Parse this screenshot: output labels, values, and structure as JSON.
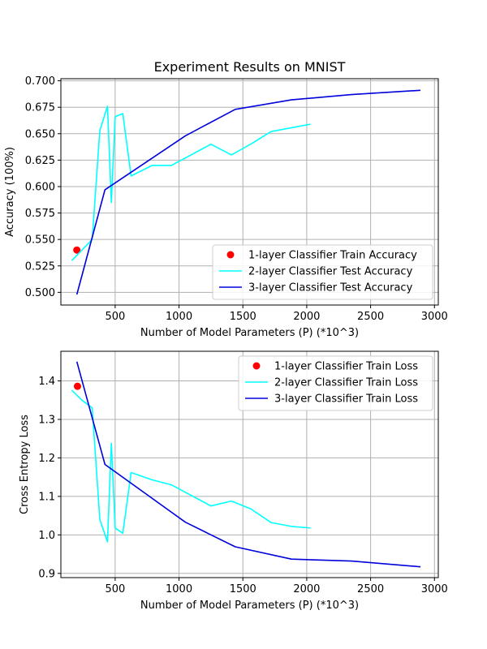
{
  "chart_data": [
    {
      "type": "line",
      "title": "Experiment Results on MNIST",
      "xlabel": "Number of Model Parameters (P) (*10^3)",
      "ylabel": "Accuracy (100%)",
      "xlim": [
        75,
        3030
      ],
      "ylim": [
        0.488,
        0.702
      ],
      "xticks": [
        500,
        1000,
        1500,
        2000,
        2500,
        3000
      ],
      "yticks": [
        0.5,
        0.525,
        0.55,
        0.575,
        0.6,
        0.625,
        0.65,
        0.675,
        0.7
      ],
      "yticklabels": [
        "0.500",
        "0.525",
        "0.550",
        "0.575",
        "0.600",
        "0.625",
        "0.650",
        "0.675",
        "0.700"
      ],
      "grid": true,
      "legend_position": "lower-right",
      "series": [
        {
          "name": "1-layer Classifier Train Accuracy",
          "style": "scatter",
          "color": "#ff0000",
          "points": [
            [
              200,
              0.54
            ]
          ]
        },
        {
          "name": "2-layer Classifier Test Accuracy",
          "style": "line",
          "color": "#00ffff",
          "points": [
            [
              160,
              0.53
            ],
            [
              240,
              0.54
            ],
            [
              320,
              0.55
            ],
            [
              380,
              0.653
            ],
            [
              440,
              0.676
            ],
            [
              470,
              0.585
            ],
            [
              500,
              0.666
            ],
            [
              560,
              0.669
            ],
            [
              625,
              0.61
            ],
            [
              790,
              0.62
            ],
            [
              940,
              0.62
            ],
            [
              1250,
              0.64
            ],
            [
              1410,
              0.63
            ],
            [
              1560,
              0.64
            ],
            [
              1720,
              0.652
            ],
            [
              2030,
              0.659
            ]
          ]
        },
        {
          "name": "3-layer Classifier Test Accuracy",
          "style": "line",
          "color": "#0000dd",
          "points": [
            [
              200,
              0.498
            ],
            [
              420,
              0.597
            ],
            [
              1050,
              0.648
            ],
            [
              1440,
              0.673
            ],
            [
              1880,
              0.682
            ],
            [
              2350,
              0.687
            ],
            [
              2890,
              0.691
            ]
          ]
        }
      ]
    },
    {
      "type": "line",
      "title": "",
      "xlabel": "Number of Model Parameters (P) (*10^3)",
      "ylabel": "Cross Entropy Loss",
      "xlim": [
        75,
        3030
      ],
      "ylim": [
        0.889,
        1.477
      ],
      "xticks": [
        500,
        1000,
        1500,
        2000,
        2500,
        3000
      ],
      "yticks": [
        0.9,
        1.0,
        1.1,
        1.2,
        1.3,
        1.4
      ],
      "yticklabels": [
        "0.9",
        "1.0",
        "1.1",
        "1.2",
        "1.3",
        "1.4"
      ],
      "grid": true,
      "legend_position": "upper-right",
      "series": [
        {
          "name": "1-layer Classifier Train Loss",
          "style": "scatter",
          "color": "#ff0000",
          "points": [
            [
              205,
              1.386
            ]
          ]
        },
        {
          "name": "2-layer Classifier Train Loss",
          "style": "line",
          "color": "#00ffff",
          "points": [
            [
              160,
              1.376
            ],
            [
              240,
              1.35
            ],
            [
              320,
              1.33
            ],
            [
              380,
              1.04
            ],
            [
              440,
              0.982
            ],
            [
              470,
              1.238
            ],
            [
              500,
              1.018
            ],
            [
              560,
              1.004
            ],
            [
              625,
              1.162
            ],
            [
              790,
              1.143
            ],
            [
              940,
              1.13
            ],
            [
              1250,
              1.075
            ],
            [
              1410,
              1.088
            ],
            [
              1560,
              1.068
            ],
            [
              1720,
              1.032
            ],
            [
              1880,
              1.022
            ],
            [
              2030,
              1.018
            ]
          ]
        },
        {
          "name": "3-layer Classifier Train Loss",
          "style": "line",
          "color": "#0000dd",
          "points": [
            [
              200,
              1.45
            ],
            [
              420,
              1.183
            ],
            [
              1050,
              1.033
            ],
            [
              1440,
              0.969
            ],
            [
              1880,
              0.937
            ],
            [
              2350,
              0.932
            ],
            [
              2890,
              0.917
            ]
          ]
        }
      ]
    }
  ]
}
